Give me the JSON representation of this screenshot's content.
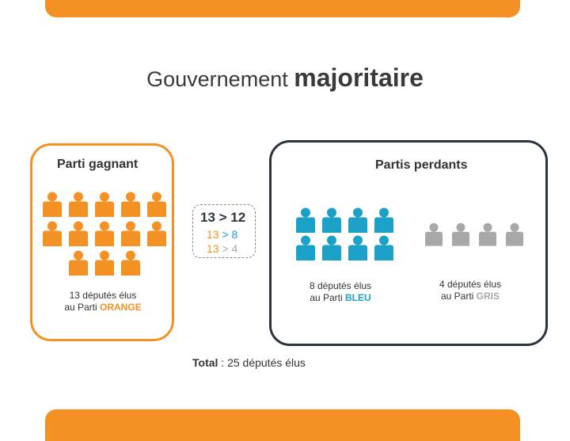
{
  "title": {
    "part1": "Gouvernement",
    "part2": "majoritaire"
  },
  "winner": {
    "label": "Parti gagnant",
    "count": 13,
    "caption_line1": "13 députés élus",
    "caption_prefix": "au Parti",
    "party_name": "ORANGE",
    "color": "#F39125"
  },
  "losers": {
    "label": "Partis perdants",
    "blue": {
      "count": 8,
      "caption_line1": "8 députés élus",
      "caption_prefix": "au Parti",
      "party_name": "BLEU",
      "color": "#1BA0C7"
    },
    "gray": {
      "count": 4,
      "caption_line1": "4 députés élus",
      "caption_prefix": "au Parti",
      "party_name": "GRIS",
      "color": "#A8A8A8"
    }
  },
  "comparison": {
    "main": "13 > 12",
    "line1": {
      "left": "13",
      "op": ">",
      "right": "8"
    },
    "line2": {
      "left": "13",
      "op": ">",
      "right": "4"
    }
  },
  "total": {
    "label": "Total",
    "text": " : 25 députés élus"
  },
  "icon": "person-icon"
}
